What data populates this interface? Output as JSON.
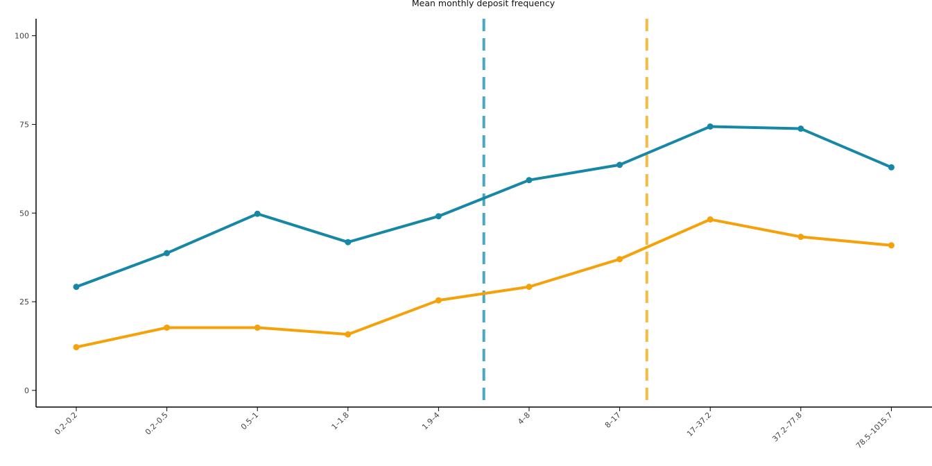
{
  "chart_data": {
    "type": "line",
    "title": "Mean monthly deposit frequency",
    "xlabel": "",
    "ylabel": "",
    "categories": [
      "0.2–0.2",
      "0.2–0.5",
      "0.5–1",
      "1–1.8",
      "1.9–4",
      "4–8",
      "8–17",
      "17–37.2",
      "37.2–77.8",
      "78.5–1015.7"
    ],
    "yticks": [
      "0",
      "25",
      "50",
      "75",
      "100"
    ],
    "ylim": [
      -4.7,
      104.8
    ],
    "grid": false,
    "legend": "none",
    "series": [
      {
        "color": "#1787a6",
        "values": [
          29.2,
          38.7,
          49.8,
          41.8,
          49.1,
          59.3,
          63.6,
          74.4,
          73.8,
          62.9
        ]
      },
      {
        "color": "#f5a20a",
        "values": [
          12.2,
          17.7,
          17.7,
          15.8,
          25.4,
          29.2,
          37.0,
          48.2,
          43.3,
          40.9
        ]
      }
    ],
    "vlines": [
      {
        "x": 5.5,
        "color": "#4aa8bf",
        "style": "dashed"
      },
      {
        "x": 7.3,
        "color": "#f7bb43",
        "style": "dashed"
      }
    ]
  }
}
